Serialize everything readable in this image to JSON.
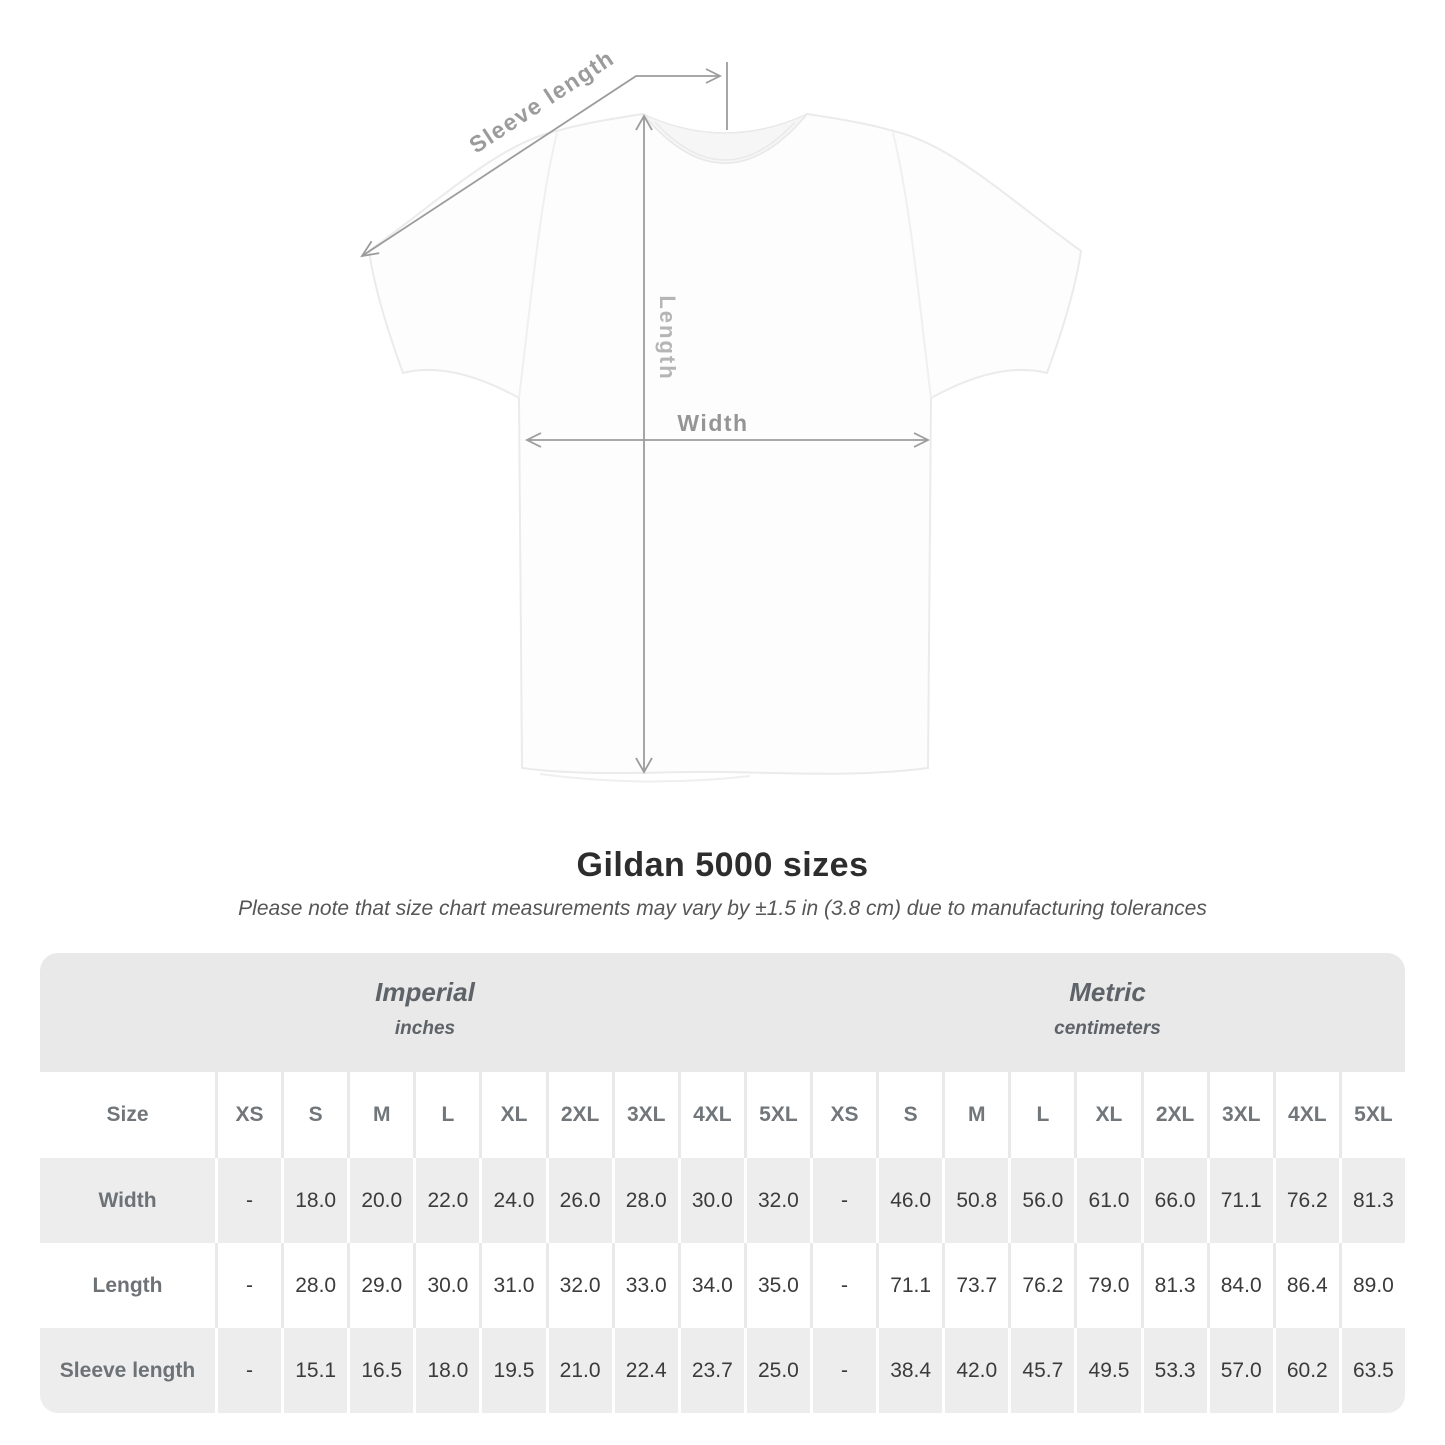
{
  "diagram": {
    "sleeve_length_label": "Sleeve length",
    "length_label": "Length",
    "width_label": "Width"
  },
  "title": "Gildan 5000 sizes",
  "subtitle": "Please note that size chart measurements may vary by ±1.5 in (3.8 cm) due to manufacturing tolerances",
  "table": {
    "groups": [
      {
        "name": "Imperial",
        "unit": "inches"
      },
      {
        "name": "Metric",
        "unit": "centimeters"
      }
    ],
    "size_header": "Size",
    "sizes": [
      "XS",
      "S",
      "M",
      "L",
      "XL",
      "2XL",
      "3XL",
      "4XL",
      "5XL"
    ],
    "rows": [
      {
        "label": "Width",
        "imperial": [
          "-",
          "18.0",
          "20.0",
          "22.0",
          "24.0",
          "26.0",
          "28.0",
          "30.0",
          "32.0"
        ],
        "metric": [
          "-",
          "46.0",
          "50.8",
          "56.0",
          "61.0",
          "66.0",
          "71.1",
          "76.2",
          "81.3"
        ]
      },
      {
        "label": "Length",
        "imperial": [
          "-",
          "28.0",
          "29.0",
          "30.0",
          "31.0",
          "32.0",
          "33.0",
          "34.0",
          "35.0"
        ],
        "metric": [
          "-",
          "71.1",
          "73.7",
          "76.2",
          "79.0",
          "81.3",
          "84.0",
          "86.4",
          "89.0"
        ]
      },
      {
        "label": "Sleeve length",
        "imperial": [
          "-",
          "15.1",
          "16.5",
          "18.0",
          "19.5",
          "21.0",
          "22.4",
          "23.7",
          "25.0"
        ],
        "metric": [
          "-",
          "38.4",
          "42.0",
          "45.7",
          "49.5",
          "53.3",
          "57.0",
          "60.2",
          "63.5"
        ]
      }
    ]
  },
  "colors": {
    "header_band": "#e9e9e9",
    "stripe_row": "#ededed",
    "annotation_gray": "#9c9c9c",
    "value_text": "#3b3b3b",
    "label_text": "#6c7276"
  }
}
